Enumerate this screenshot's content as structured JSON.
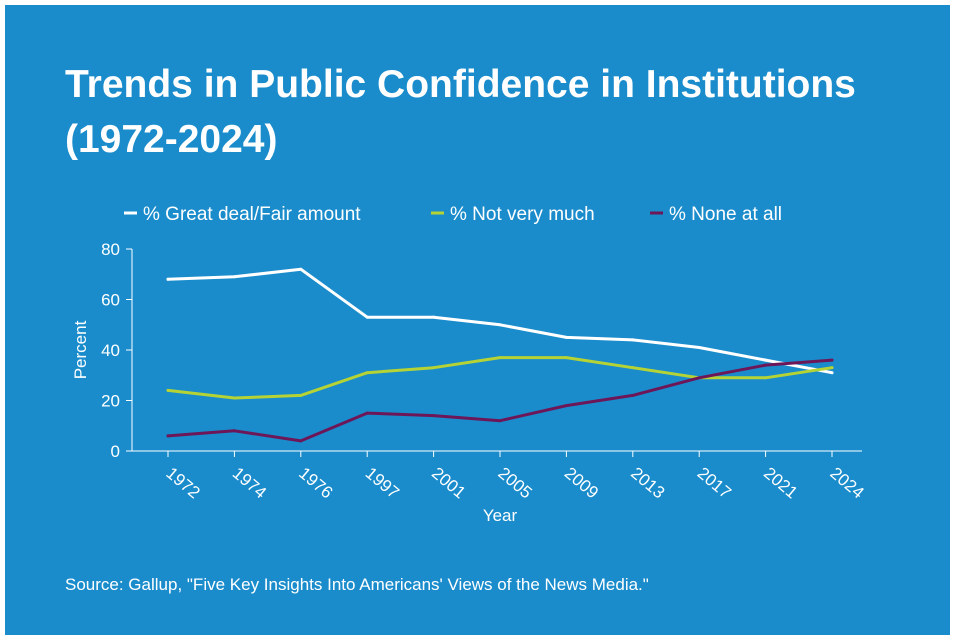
{
  "title": "Trends in Public Confidence in Institutions (1972-2024)",
  "source": "Source: Gallup, \"Five Key Insights Into Americans' Views of the News Media.\"",
  "colors": {
    "background": "#1a8ccc",
    "text": "#ffffff",
    "great_deal": "#ffffff",
    "not_very_much": "#b5d334",
    "none_at_all": "#6e1758"
  },
  "chart_data": {
    "type": "line",
    "title": "Trends in Public Confidence in Institutions (1972-2024)",
    "xlabel": "Year",
    "ylabel": "Percent",
    "categories": [
      "1972",
      "1974",
      "1976",
      "1997",
      "2001",
      "2005",
      "2009",
      "2013",
      "2017",
      "2021",
      "2024"
    ],
    "ylim": [
      0,
      80
    ],
    "yticks": [
      "0",
      "20",
      "40",
      "60",
      "80"
    ],
    "legend_position": "top",
    "grid": false,
    "series": [
      {
        "name": "% Great deal/Fair amount",
        "color": "#ffffff",
        "values": [
          68,
          69,
          72,
          53,
          53,
          50,
          45,
          44,
          41,
          36,
          31
        ]
      },
      {
        "name": "% Not very much",
        "color": "#b5d334",
        "values": [
          24,
          21,
          22,
          31,
          33,
          37,
          37,
          33,
          29,
          29,
          33
        ]
      },
      {
        "name": "% None at all",
        "color": "#6e1758",
        "values": [
          6,
          8,
          4,
          15,
          14,
          12,
          18,
          22,
          29,
          34,
          36
        ]
      }
    ]
  }
}
